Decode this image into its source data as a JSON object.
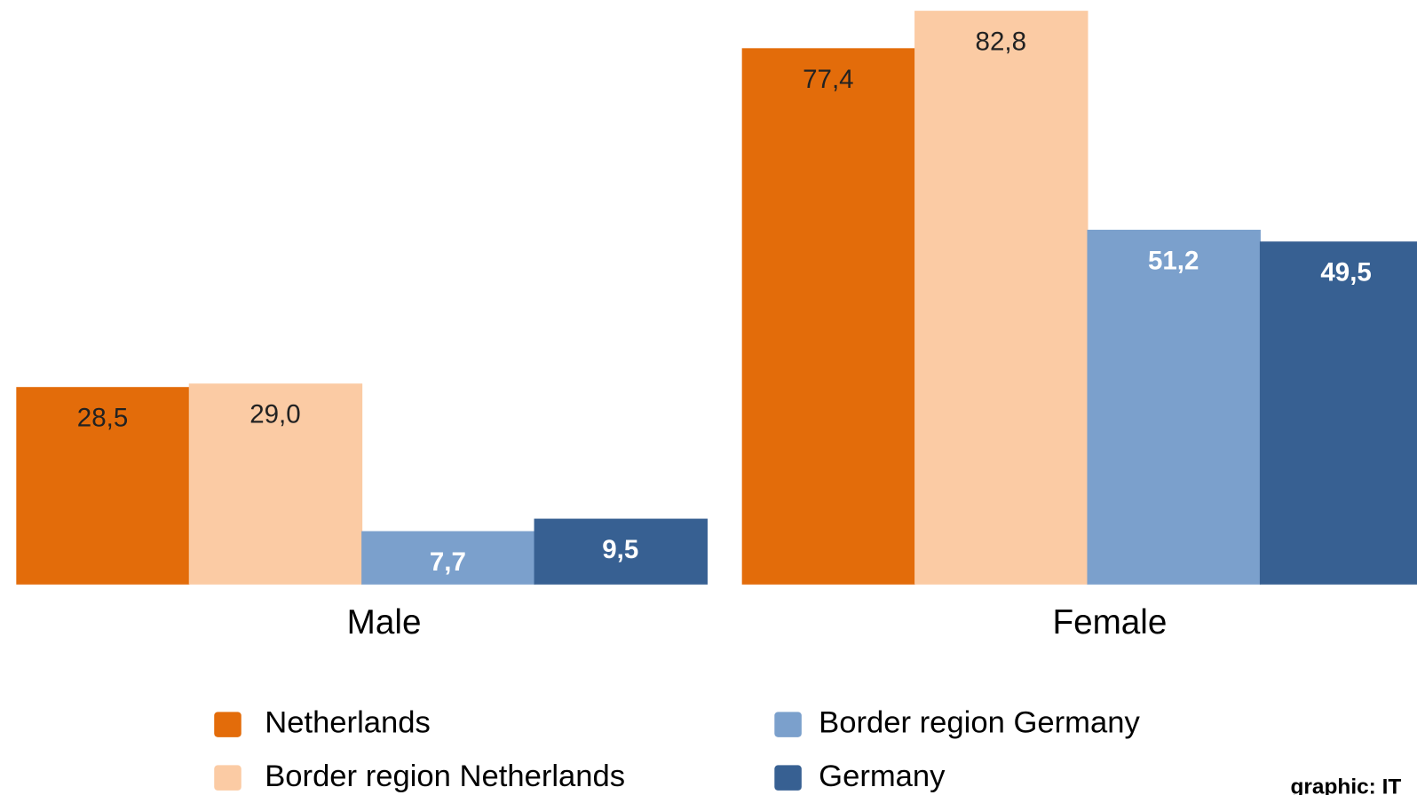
{
  "chart_data": {
    "type": "bar",
    "categories": [
      "Male",
      "Female"
    ],
    "series": [
      {
        "name": "Netherlands",
        "color": "#e36c0a",
        "values": [
          28.5,
          77.4
        ],
        "value_labels": [
          "28,5",
          "77,4"
        ]
      },
      {
        "name": "Border region Netherlands",
        "color": "#fbcba4",
        "values": [
          29.0,
          82.8
        ],
        "value_labels": [
          "29,0",
          "82,8"
        ]
      },
      {
        "name": "Border region Germany",
        "color": "#7ba0cc",
        "values": [
          7.7,
          51.2
        ],
        "value_labels": [
          "7,7",
          "51,2"
        ]
      },
      {
        "name": "Germany",
        "color": "#376092",
        "values": [
          9.5,
          49.5
        ],
        "value_labels": [
          "9,5",
          "49,5"
        ]
      }
    ],
    "credit": "graphic: IT"
  }
}
